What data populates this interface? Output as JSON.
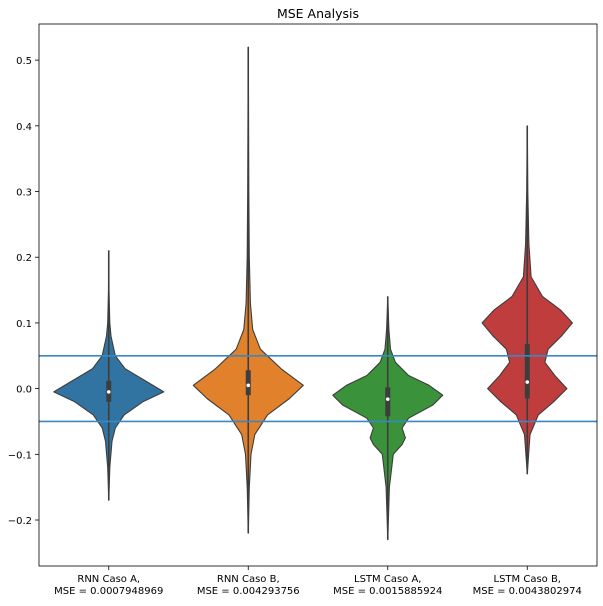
{
  "chart_data": {
    "type": "violin",
    "title": "MSE Analysis",
    "xlabel": "",
    "ylabel": "",
    "ylim": [
      -0.27,
      0.555
    ],
    "yticks": [
      -0.2,
      -0.1,
      0.0,
      0.1,
      0.2,
      0.3,
      0.4,
      0.5
    ],
    "ytick_labels": [
      "−0.2",
      "−0.1",
      "0.0",
      "0.1",
      "0.2",
      "0.3",
      "0.4",
      "0.5"
    ],
    "categories": [
      [
        "RNN Caso A,",
        "MSE = 0.0007948969"
      ],
      [
        "RNN Caso B,",
        "MSE = 0.004293756"
      ],
      [
        "LSTM Caso A,",
        "MSE = 0.0015885924"
      ],
      [
        "LSTM Caso B,",
        "MSE = 0.0043802974"
      ]
    ],
    "reference_lines": [
      0.05,
      -0.05
    ],
    "reference_line_color": "#3a87c2",
    "grid": false,
    "series": [
      {
        "color": "#3274a1",
        "range": [
          -0.17,
          0.21
        ],
        "quartiles": [
          -0.02,
          -0.005,
          0.012
        ],
        "profile": [
          [
            -0.17,
            0.0
          ],
          [
            -0.12,
            0.02
          ],
          [
            -0.08,
            0.06
          ],
          [
            -0.06,
            0.12
          ],
          [
            -0.04,
            0.28
          ],
          [
            -0.02,
            0.62
          ],
          [
            -0.005,
            1.0
          ],
          [
            0.01,
            0.7
          ],
          [
            0.03,
            0.3
          ],
          [
            0.05,
            0.12
          ],
          [
            0.08,
            0.04
          ],
          [
            0.1,
            0.02
          ],
          [
            0.15,
            0.005
          ],
          [
            0.21,
            0.0
          ]
        ]
      },
      {
        "color": "#e1812c",
        "range": [
          -0.22,
          0.52
        ],
        "quartiles": [
          -0.01,
          0.005,
          0.028
        ],
        "profile": [
          [
            -0.22,
            0.0
          ],
          [
            -0.15,
            0.02
          ],
          [
            -0.1,
            0.05
          ],
          [
            -0.07,
            0.12
          ],
          [
            -0.04,
            0.35
          ],
          [
            -0.015,
            0.75
          ],
          [
            0.005,
            1.0
          ],
          [
            0.03,
            0.6
          ],
          [
            0.06,
            0.22
          ],
          [
            0.09,
            0.08
          ],
          [
            0.13,
            0.04
          ],
          [
            0.2,
            0.02
          ],
          [
            0.3,
            0.01
          ],
          [
            0.52,
            0.0
          ]
        ]
      },
      {
        "color": "#3a923a",
        "range": [
          -0.23,
          0.14
        ],
        "quartiles": [
          -0.042,
          -0.016,
          0.002
        ],
        "profile": [
          [
            -0.23,
            0.0
          ],
          [
            -0.15,
            0.03
          ],
          [
            -0.1,
            0.1
          ],
          [
            -0.085,
            0.26
          ],
          [
            -0.075,
            0.32
          ],
          [
            -0.06,
            0.26
          ],
          [
            -0.045,
            0.38
          ],
          [
            -0.025,
            0.82
          ],
          [
            -0.01,
            1.0
          ],
          [
            0.005,
            0.75
          ],
          [
            0.02,
            0.38
          ],
          [
            0.04,
            0.14
          ],
          [
            0.06,
            0.05
          ],
          [
            0.09,
            0.02
          ],
          [
            0.14,
            0.0
          ]
        ]
      },
      {
        "color": "#c03d3e",
        "range": [
          -0.13,
          0.4
        ],
        "quartiles": [
          -0.015,
          0.01,
          0.068
        ],
        "profile": [
          [
            -0.13,
            0.0
          ],
          [
            -0.07,
            0.05
          ],
          [
            -0.04,
            0.2
          ],
          [
            -0.02,
            0.48
          ],
          [
            0.0,
            0.72
          ],
          [
            0.02,
            0.5
          ],
          [
            0.04,
            0.32
          ],
          [
            0.06,
            0.38
          ],
          [
            0.08,
            0.62
          ],
          [
            0.1,
            0.82
          ],
          [
            0.12,
            0.6
          ],
          [
            0.14,
            0.28
          ],
          [
            0.17,
            0.07
          ],
          [
            0.22,
            0.03
          ],
          [
            0.3,
            0.01
          ],
          [
            0.4,
            0.0
          ]
        ]
      }
    ]
  }
}
